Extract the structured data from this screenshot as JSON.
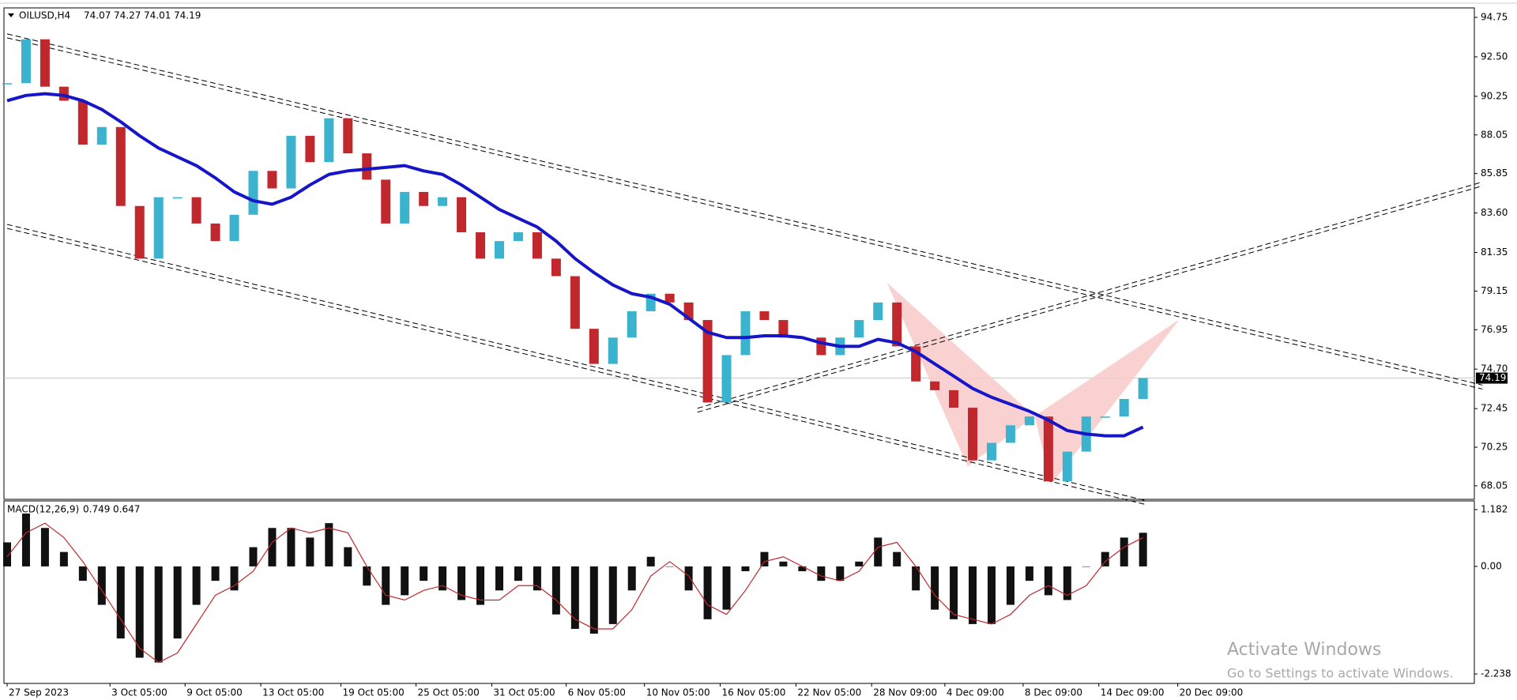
{
  "chart_data": [
    {
      "type": "candlestick",
      "symbol": "OILUSD,H4",
      "ohlc": [
        74.07,
        74.27,
        74.01,
        74.19
      ],
      "last_price": 74.19,
      "xlim": [
        -0.5,
        232.5
      ],
      "ylim": [
        67.28,
        95.29
      ],
      "yticks": [
        94.75,
        {
          "value": 92.5,
          "label": "92.50"
        },
        90.25,
        88.05,
        85.85,
        {
          "value": 83.6,
          "label": "83.60"
        },
        81.35,
        79.15,
        76.95,
        {
          "value": 74.7,
          "label": "74.70"
        },
        72.45,
        70.25,
        68.05
      ],
      "x": [
        0,
        3,
        6,
        9,
        12,
        15,
        18,
        21,
        24,
        27,
        30,
        33,
        36,
        39,
        42,
        45,
        48,
        51,
        54,
        57,
        60,
        63,
        66,
        69,
        72,
        75,
        78,
        81,
        84,
        87,
        90,
        93,
        96,
        99,
        102,
        105,
        108,
        111,
        114,
        117,
        120,
        123,
        126,
        129,
        132,
        135,
        138,
        141,
        144,
        147,
        150,
        153,
        156,
        159,
        162,
        165,
        168,
        171,
        174,
        177,
        180
      ],
      "close": [
        91.0,
        93.5,
        90.8,
        90.0,
        87.5,
        88.5,
        84.0,
        81.0,
        84.5,
        84.5,
        83.0,
        82.0,
        83.5,
        86.0,
        85.0,
        88.0,
        86.5,
        89.0,
        87.0,
        85.5,
        83.0,
        84.8,
        84.0,
        84.5,
        82.5,
        81.0,
        82.0,
        82.5,
        81.0,
        80.0,
        77.0,
        75.0,
        76.5,
        78.0,
        79.0,
        78.5,
        77.5,
        72.8,
        75.5,
        78.0,
        77.5,
        76.5,
        76.5,
        75.5,
        76.5,
        77.5,
        78.5,
        76.0,
        74.0,
        73.5,
        72.5,
        69.5,
        70.5,
        71.5,
        72.0,
        68.3,
        70.0,
        72.0,
        72.0,
        73.0,
        74.19
      ],
      "ma": [
        90.0,
        90.3,
        90.4,
        90.3,
        90.0,
        89.5,
        88.8,
        88.0,
        87.3,
        86.8,
        86.3,
        85.6,
        84.8,
        84.3,
        84.1,
        84.5,
        85.2,
        85.8,
        86.0,
        86.1,
        86.2,
        86.3,
        86.0,
        85.8,
        85.2,
        84.5,
        83.8,
        83.3,
        82.8,
        82.0,
        81.0,
        80.2,
        79.5,
        79.0,
        78.8,
        78.4,
        77.6,
        76.8,
        76.5,
        76.5,
        76.6,
        76.6,
        76.5,
        76.2,
        76.0,
        76.0,
        76.4,
        76.2,
        75.7,
        75.0,
        74.3,
        73.6,
        73.1,
        72.7,
        72.3,
        71.8,
        71.2,
        71.0,
        70.9,
        70.9,
        71.4
      ],
      "up_color": "#3bb3cf",
      "down_color": "#c0282d",
      "ma_color": "#1616c8",
      "trendlines": [
        [
          0,
          93.81,
          233.8,
          73.79
        ],
        [
          0,
          82.95,
          180.2,
          67.23
        ],
        [
          109.4,
          72.47,
          233.8,
          85.37
        ]
      ],
      "patterns": [
        [
          [
            139.4,
            79.64
          ],
          [
            152.2,
            69.16
          ],
          [
            162.8,
            72.02
          ]
        ],
        [
          [
            162.8,
            72.02
          ],
          [
            165.5,
            68.16
          ],
          [
            185.8,
            77.54
          ]
        ]
      ],
      "pattern_color": "#f9c9c9"
    },
    {
      "type": "macd",
      "label": "MACD(12,26,9)",
      "label_values": [
        0.749,
        0.647
      ],
      "xlim": [
        -0.5,
        232.5
      ],
      "ylim": [
        -2.435,
        1.363
      ],
      "yticks": [
        1.182,
        {
          "value": 0,
          "label": "0.00"
        },
        -2.238
      ],
      "xticks": [
        {
          "value": 0,
          "label": "27 Sep 2023"
        },
        {
          "value": 16.3,
          "label": "3 Oct 05:00"
        },
        {
          "value": 28.2,
          "label": "9 Oct 05:00"
        },
        {
          "value": 40.2,
          "label": "13 Oct 05:00"
        },
        {
          "value": 52.9,
          "label": "19 Oct 05:00"
        },
        {
          "value": 64.8,
          "label": "25 Oct 05:00"
        },
        {
          "value": 76.8,
          "label": "31 Oct 05:00"
        },
        {
          "value": 88.6,
          "label": "6 Nov 05:00"
        },
        {
          "value": 101,
          "label": "10 Nov 05:00"
        },
        {
          "value": 113,
          "label": "16 Nov 05:00"
        },
        {
          "value": 125,
          "label": "22 Nov 05:00"
        },
        {
          "value": 137,
          "label": "28 Nov 09:00"
        },
        {
          "value": 148.6,
          "label": "4 Dec 09:00"
        },
        {
          "value": 161,
          "label": "8 Dec 09:00"
        },
        {
          "value": 173,
          "label": "14 Dec 09:00"
        },
        {
          "value": 185.5,
          "label": "20 Dec 09:00"
        }
      ],
      "x": [
        0,
        3,
        6,
        9,
        12,
        15,
        18,
        21,
        24,
        27,
        30,
        33,
        36,
        39,
        42,
        45,
        48,
        51,
        54,
        57,
        60,
        63,
        66,
        69,
        72,
        75,
        78,
        81,
        84,
        87,
        90,
        93,
        96,
        99,
        102,
        105,
        108,
        111,
        114,
        117,
        120,
        123,
        126,
        129,
        132,
        135,
        138,
        141,
        144,
        147,
        150,
        153,
        156,
        159,
        162,
        165,
        168,
        171,
        174,
        177,
        180
      ],
      "histogram": [
        0.5,
        1.1,
        0.8,
        0.3,
        -0.3,
        -0.8,
        -1.5,
        -1.9,
        -2.0,
        -1.5,
        -0.8,
        -0.3,
        -0.5,
        0.4,
        0.8,
        0.8,
        0.6,
        0.9,
        0.4,
        -0.4,
        -0.8,
        -0.6,
        -0.3,
        -0.5,
        -0.7,
        -0.8,
        -0.5,
        -0.3,
        -0.5,
        -1.0,
        -1.3,
        -1.4,
        -1.2,
        -0.5,
        0.2,
        0.0,
        -0.5,
        -1.1,
        -0.9,
        -0.1,
        0.3,
        0.1,
        -0.1,
        -0.3,
        -0.3,
        0.1,
        0.6,
        0.3,
        -0.5,
        -0.9,
        -1.1,
        -1.2,
        -1.2,
        -0.8,
        -0.3,
        -0.6,
        -0.7,
        0.0,
        0.3,
        0.6,
        0.7
      ],
      "signal": [
        0.2,
        0.7,
        0.9,
        0.6,
        0.1,
        -0.5,
        -1.1,
        -1.7,
        -2.0,
        -1.8,
        -1.2,
        -0.6,
        -0.4,
        -0.1,
        0.5,
        0.8,
        0.7,
        0.8,
        0.7,
        0.0,
        -0.6,
        -0.7,
        -0.5,
        -0.4,
        -0.6,
        -0.7,
        -0.7,
        -0.4,
        -0.4,
        -0.7,
        -1.1,
        -1.3,
        -1.3,
        -0.9,
        -0.2,
        0.1,
        -0.2,
        -0.8,
        -1.0,
        -0.5,
        0.1,
        0.2,
        0.0,
        -0.2,
        -0.3,
        -0.1,
        0.4,
        0.5,
        0.0,
        -0.6,
        -1.0,
        -1.1,
        -1.2,
        -1.0,
        -0.6,
        -0.4,
        -0.6,
        -0.4,
        0.1,
        0.4,
        0.6
      ],
      "hist_color": "#111111",
      "signal_color": "#c0282d"
    }
  ],
  "watermark": {
    "title": "Activate Windows",
    "subtitle": "Go to Settings to activate Windows."
  }
}
